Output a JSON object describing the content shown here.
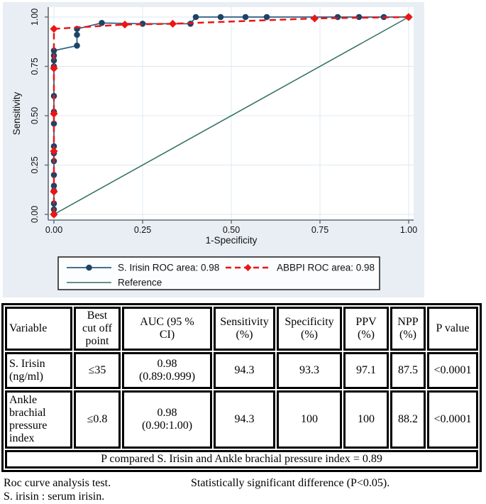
{
  "colors": {
    "figure_bg": "#e8eef3",
    "plot_bg": "#ffffff",
    "grid": "#dde8f0",
    "axis": "#5f6b73",
    "irisin_line": "#2c5b80",
    "irisin_marker": "#1d4467",
    "abbpi": "#ec1515",
    "reference": "#2e6e5e",
    "legend_border": "#1a1a1a"
  },
  "chart_data": {
    "type": "line",
    "title": "",
    "xlabel": "1-Specificity",
    "ylabel": "Sensitivity",
    "xlim": [
      0,
      1
    ],
    "ylim": [
      0,
      1
    ],
    "grid": true,
    "legend_position": "bottom",
    "ticks": {
      "values": [
        0,
        0.25,
        0.5,
        0.75,
        1
      ],
      "labels": [
        "0.00",
        "0.25",
        "0.50",
        "0.75",
        "1.00"
      ]
    },
    "series": [
      {
        "name": "S. Irisin ROC area: 0.98",
        "marker": "circle",
        "dash": "solid",
        "points": [
          [
            0,
            0
          ],
          [
            0,
            0.025
          ],
          [
            0,
            0.055
          ],
          [
            0,
            0.12
          ],
          [
            0,
            0.145
          ],
          [
            0,
            0.2
          ],
          [
            0,
            0.27
          ],
          [
            0,
            0.31
          ],
          [
            0,
            0.345
          ],
          [
            0,
            0.46
          ],
          [
            0,
            0.52
          ],
          [
            0,
            0.6
          ],
          [
            0,
            0.75
          ],
          [
            0,
            0.78
          ],
          [
            0,
            0.805
          ],
          [
            0,
            0.83
          ],
          [
            0.065,
            0.855
          ],
          [
            0.065,
            0.91
          ],
          [
            0.065,
            0.94
          ],
          [
            0.135,
            0.97
          ],
          [
            0.25,
            0.966
          ],
          [
            0.385,
            0.966
          ],
          [
            0.4,
            1
          ],
          [
            0.47,
            1
          ],
          [
            0.54,
            1
          ],
          [
            0.6,
            1
          ],
          [
            0.8,
            1
          ],
          [
            0.86,
            1
          ],
          [
            0.93,
            1
          ],
          [
            1,
            1
          ]
        ]
      },
      {
        "name": "ABBPI ROC area: 0.98",
        "marker": "diamond",
        "dash": "dashed",
        "points": [
          [
            0,
            0
          ],
          [
            0,
            0.115
          ],
          [
            0,
            0.32
          ],
          [
            0,
            0.51
          ],
          [
            0,
            0.74
          ],
          [
            0,
            0.94
          ],
          [
            0.2,
            0.962
          ],
          [
            0.335,
            0.966
          ],
          [
            0.735,
            0.993
          ],
          [
            1,
            1
          ]
        ]
      },
      {
        "name": "Reference",
        "marker": "none",
        "dash": "solid",
        "points": [
          [
            0,
            0
          ],
          [
            1,
            1
          ]
        ]
      }
    ]
  },
  "table": {
    "headers": [
      "Variable",
      "Best\ncut off\npoint",
      "AUC (95 %\nCI)",
      "Sensitivity\n(%)",
      "Specificity\n(%)",
      "PPV\n(%)",
      "NPP\n(%)",
      "P value"
    ],
    "rows": [
      {
        "variable": "S. Irisin\n(ng/ml)",
        "cutoff": "≤35",
        "auc": "0.98\n(0.89:0.999)",
        "sens": "94.3",
        "spec": "93.3",
        "ppv": "97.1",
        "npp": "87.5",
        "p": "<0.0001"
      },
      {
        "variable": "Ankle\nbrachial\npressure\nindex",
        "cutoff": "≤0.8",
        "auc": "0.98\n(0.90:1.00)",
        "sens": "94.3",
        "spec": "100",
        "ppv": "100",
        "npp": "88.2",
        "p": "<0.0001"
      }
    ],
    "footer": "P compared S. Irisin and Ankle brachial pressure index = 0.89"
  },
  "notes": {
    "line1_left": "Roc curve analysis test.",
    "line1_right": "Statistically significant difference (P<0.05).",
    "line2": "S. irisin : serum irisin."
  }
}
